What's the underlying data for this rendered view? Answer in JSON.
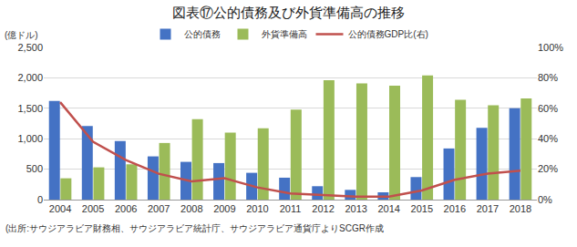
{
  "chart_data": {
    "type": "bar",
    "title": "図表⑰公的債務及び外貨準備高の推移",
    "ylabel": "(億ドル)",
    "note": "(出所:サウジアラビア財務相、サウジアラビア統計庁、サウジアラビア通貨庁よりSCGR作成",
    "categories": [
      "2004",
      "2005",
      "2006",
      "2007",
      "2008",
      "2009",
      "2010",
      "2011",
      "2012",
      "2013",
      "2014",
      "2015",
      "2016",
      "2017",
      "2018"
    ],
    "series": [
      {
        "name": "公的債務",
        "type": "bar",
        "color": "#4472c4",
        "values": [
          1620,
          1210,
          960,
          710,
          620,
          600,
          440,
          360,
          220,
          160,
          120,
          370,
          840,
          1180,
          1500
        ]
      },
      {
        "name": "外貨準備高",
        "type": "bar",
        "color": "#9bbb59",
        "values": [
          350,
          530,
          580,
          930,
          1320,
          1100,
          1170,
          1480,
          1960,
          1910,
          1870,
          2040,
          1640,
          1550,
          1660
        ]
      },
      {
        "name": "公的債務GDP比(右)",
        "type": "line",
        "color": "#c0504d",
        "axis": "y2",
        "values": [
          64,
          38,
          26,
          17,
          12,
          14,
          8,
          4,
          3,
          2,
          2,
          6,
          13,
          17,
          19
        ]
      }
    ],
    "ylim": [
      0,
      2500
    ],
    "yticks": [
      0,
      500,
      {
        "value": 1000,
        "label": "1,000"
      },
      {
        "value": 1500,
        "label": "1,500"
      },
      {
        "value": 2000,
        "label": "2,000"
      },
      {
        "value": 2500,
        "label": "2,500"
      }
    ],
    "y2lim": [
      0,
      100
    ],
    "y2ticks": [
      {
        "value": 0,
        "label": "0%"
      },
      {
        "value": 20,
        "label": "20%"
      },
      {
        "value": 40,
        "label": "40%"
      },
      {
        "value": 60,
        "label": "60%"
      },
      {
        "value": 80,
        "label": "80%"
      },
      {
        "value": 100,
        "label": "100%"
      }
    ],
    "grid": true,
    "legend": "top"
  }
}
